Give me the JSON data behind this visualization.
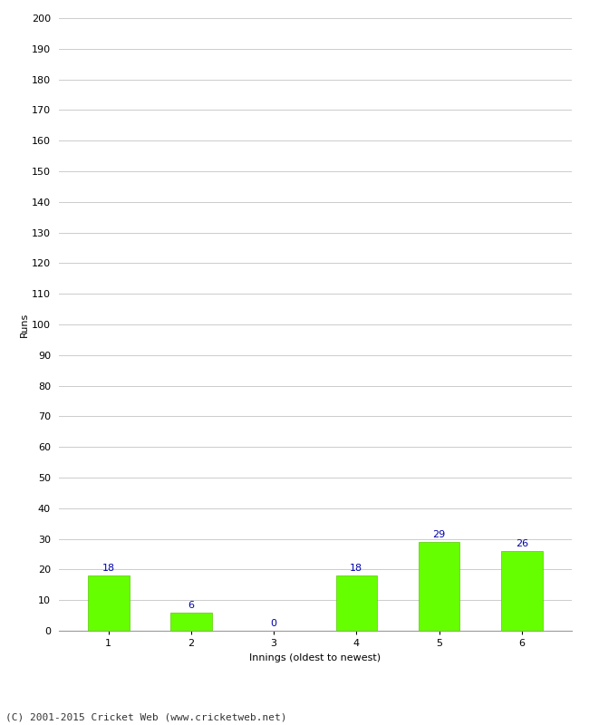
{
  "categories": [
    "1",
    "2",
    "3",
    "4",
    "5",
    "6"
  ],
  "values": [
    18,
    6,
    0,
    18,
    29,
    26
  ],
  "bar_color": "#66ff00",
  "bar_edge_color": "#55cc00",
  "label_color": "#0000aa",
  "ylabel": "Runs",
  "xlabel": "Innings (oldest to newest)",
  "ylim": [
    0,
    200
  ],
  "yticks": [
    0,
    10,
    20,
    30,
    40,
    50,
    60,
    70,
    80,
    90,
    100,
    110,
    120,
    130,
    140,
    150,
    160,
    170,
    180,
    190,
    200
  ],
  "footer": "(C) 2001-2015 Cricket Web (www.cricketweb.net)",
  "background_color": "#ffffff",
  "grid_color": "#cccccc",
  "ylabel_fontsize": 8,
  "xlabel_fontsize": 8,
  "label_fontsize": 8,
  "tick_fontsize": 8,
  "footer_fontsize": 8
}
